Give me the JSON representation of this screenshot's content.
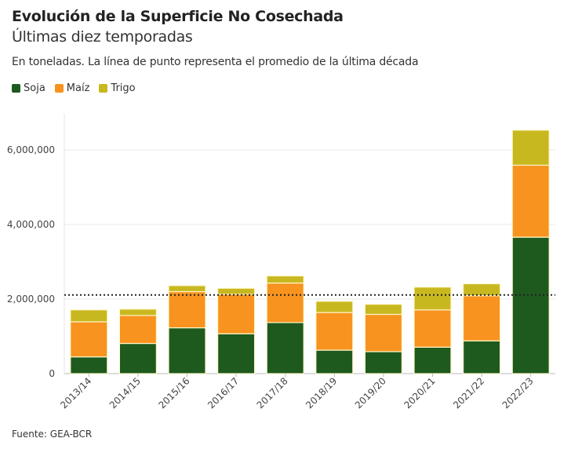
{
  "header": {
    "title": "Evolución de la Superficie No Cosechada",
    "subtitle": "Últimas diez temporadas",
    "description": "En toneladas. La línea de punto representa el promedio de la última década"
  },
  "footer": {
    "source": "Fuente: GEA-BCR"
  },
  "chart_data": {
    "type": "bar",
    "stacked": true,
    "categories": [
      "2013/14",
      "2014/15",
      "2015/16",
      "2016/17",
      "2017/18",
      "2018/19",
      "2019/20",
      "2020/21",
      "2021/22",
      "2022/23"
    ],
    "series": [
      {
        "name": "Soja",
        "color": "#1e5a1e",
        "values": [
          450000,
          810000,
          1230000,
          1070000,
          1370000,
          630000,
          590000,
          710000,
          880000,
          3660000
        ]
      },
      {
        "name": "Maíz",
        "color": "#f7931e",
        "values": [
          940000,
          750000,
          970000,
          1060000,
          1060000,
          1010000,
          1000000,
          1000000,
          1210000,
          1930000
        ]
      },
      {
        "name": "Trigo",
        "color": "#c8b820",
        "values": [
          320000,
          170000,
          160000,
          160000,
          190000,
          300000,
          270000,
          610000,
          320000,
          940000
        ]
      }
    ],
    "average_line": 2110000,
    "average_line_style": "dotted",
    "ylim": [
      0,
      7000000
    ],
    "yticks": [
      0,
      2000000,
      4000000,
      6000000
    ],
    "ytick_labels": [
      "0",
      "2,000,000",
      "4,000,000",
      "6,000,000"
    ],
    "grid": true,
    "legend_position": "top-left",
    "xlabel": "",
    "ylabel": ""
  }
}
